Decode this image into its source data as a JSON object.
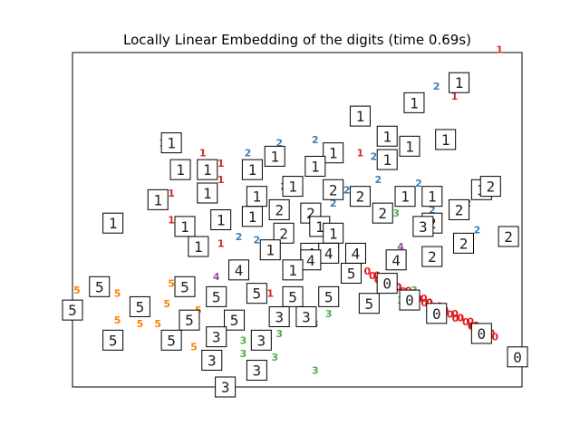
{
  "chart_data": {
    "type": "scatter",
    "title": "Locally Linear Embedding of the digits (time 0.69s)",
    "xlabel": "",
    "ylabel": "",
    "xlim": [
      0,
      1
    ],
    "ylim": [
      0,
      1
    ],
    "axes_ticks": false,
    "grid": false,
    "colors": {
      "0": "#e41a1c",
      "1": "#d62728",
      "2": "#377eb8",
      "3": "#4daf4a",
      "4": "#984ea3",
      "5": "#ff7f00"
    },
    "points": [
      {
        "digit": "1",
        "x": 0.95,
        "y": 1.01
      },
      {
        "digit": "2",
        "x": 0.81,
        "y": 0.9
      },
      {
        "digit": "1",
        "x": 0.85,
        "y": 0.87
      },
      {
        "digit": "2",
        "x": 0.54,
        "y": 0.74
      },
      {
        "digit": "2",
        "x": 0.46,
        "y": 0.73
      },
      {
        "digit": "1",
        "x": 0.2,
        "y": 0.73
      },
      {
        "digit": "1",
        "x": 0.29,
        "y": 0.7
      },
      {
        "digit": "2",
        "x": 0.39,
        "y": 0.7
      },
      {
        "digit": "1",
        "x": 0.64,
        "y": 0.7
      },
      {
        "digit": "2",
        "x": 0.77,
        "y": 0.61
      },
      {
        "digit": "2",
        "x": 0.88,
        "y": 0.55
      },
      {
        "digit": "1",
        "x": 0.33,
        "y": 0.62
      },
      {
        "digit": "1",
        "x": 0.22,
        "y": 0.58
      },
      {
        "digit": "2",
        "x": 0.47,
        "y": 0.6
      },
      {
        "digit": "2",
        "x": 0.58,
        "y": 0.55
      },
      {
        "digit": "2",
        "x": 0.8,
        "y": 0.53
      },
      {
        "digit": "3",
        "x": 0.72,
        "y": 0.52
      },
      {
        "digit": "2",
        "x": 0.9,
        "y": 0.47
      },
      {
        "digit": "2",
        "x": 0.37,
        "y": 0.45
      },
      {
        "digit": "2",
        "x": 0.41,
        "y": 0.44
      },
      {
        "digit": "1",
        "x": 0.33,
        "y": 0.43
      },
      {
        "digit": "1",
        "x": 0.22,
        "y": 0.5
      },
      {
        "digit": "4",
        "x": 0.73,
        "y": 0.42
      },
      {
        "digit": "4",
        "x": 0.32,
        "y": 0.33
      },
      {
        "digit": "4",
        "x": 0.52,
        "y": 0.41
      },
      {
        "digit": "0",
        "x": 0.94,
        "y": 0.15
      },
      {
        "digit": "0",
        "x": 0.89,
        "y": 0.18
      },
      {
        "digit": "5",
        "x": 0.01,
        "y": 0.29
      },
      {
        "digit": "5",
        "x": 0.07,
        "y": 0.28
      },
      {
        "digit": "5",
        "x": 0.1,
        "y": 0.28
      },
      {
        "digit": "5",
        "x": 0.22,
        "y": 0.31
      },
      {
        "digit": "5",
        "x": 0.21,
        "y": 0.25
      },
      {
        "digit": "5",
        "x": 0.15,
        "y": 0.19
      },
      {
        "digit": "5",
        "x": 0.19,
        "y": 0.19
      },
      {
        "digit": "5",
        "x": 0.28,
        "y": 0.23
      },
      {
        "digit": "5",
        "x": 0.27,
        "y": 0.12
      },
      {
        "digit": "5",
        "x": 0.1,
        "y": 0.2
      },
      {
        "digit": "3",
        "x": 0.38,
        "y": 0.14
      },
      {
        "digit": "3",
        "x": 0.46,
        "y": 0.16
      },
      {
        "digit": "3",
        "x": 0.57,
        "y": 0.22
      },
      {
        "digit": "3",
        "x": 0.54,
        "y": 0.19
      },
      {
        "digit": "3",
        "x": 0.45,
        "y": 0.09
      },
      {
        "digit": "3",
        "x": 0.38,
        "y": 0.1
      },
      {
        "digit": "3",
        "x": 0.54,
        "y": 0.05
      },
      {
        "digit": "3",
        "x": 0.73,
        "y": 0.26
      },
      {
        "digit": "3",
        "x": 0.76,
        "y": 0.29
      },
      {
        "digit": "1",
        "x": 0.44,
        "y": 0.28
      },
      {
        "digit": "1",
        "x": 0.33,
        "y": 0.67
      },
      {
        "digit": "2",
        "x": 0.67,
        "y": 0.69
      },
      {
        "digit": "2",
        "x": 0.68,
        "y": 0.62
      },
      {
        "digit": "2",
        "x": 0.61,
        "y": 0.59
      }
    ],
    "thumbnails": [
      {
        "digit": "1",
        "x": 0.86,
        "y": 0.91
      },
      {
        "digit": "1",
        "x": 0.76,
        "y": 0.85
      },
      {
        "digit": "1",
        "x": 0.64,
        "y": 0.81
      },
      {
        "digit": "1",
        "x": 0.7,
        "y": 0.75
      },
      {
        "digit": "1",
        "x": 0.83,
        "y": 0.74
      },
      {
        "digit": "1",
        "x": 0.75,
        "y": 0.72
      },
      {
        "digit": "1",
        "x": 0.58,
        "y": 0.7
      },
      {
        "digit": "1",
        "x": 0.45,
        "y": 0.69
      },
      {
        "digit": "1",
        "x": 0.54,
        "y": 0.66
      },
      {
        "digit": "1",
        "x": 0.7,
        "y": 0.68
      },
      {
        "digit": "1",
        "x": 0.22,
        "y": 0.73
      },
      {
        "digit": "1",
        "x": 0.24,
        "y": 0.65
      },
      {
        "digit": "1",
        "x": 0.3,
        "y": 0.65
      },
      {
        "digit": "1",
        "x": 0.4,
        "y": 0.65
      },
      {
        "digit": "1",
        "x": 0.3,
        "y": 0.58
      },
      {
        "digit": "1",
        "x": 0.19,
        "y": 0.56
      },
      {
        "digit": "1",
        "x": 0.41,
        "y": 0.57
      },
      {
        "digit": "1",
        "x": 0.49,
        "y": 0.6
      },
      {
        "digit": "2",
        "x": 0.58,
        "y": 0.59
      },
      {
        "digit": "2",
        "x": 0.64,
        "y": 0.57
      },
      {
        "digit": "1",
        "x": 0.4,
        "y": 0.51
      },
      {
        "digit": "2",
        "x": 0.46,
        "y": 0.53
      },
      {
        "digit": "2",
        "x": 0.53,
        "y": 0.52
      },
      {
        "digit": "2",
        "x": 0.69,
        "y": 0.52
      },
      {
        "digit": "1",
        "x": 0.74,
        "y": 0.57
      },
      {
        "digit": "1",
        "x": 0.8,
        "y": 0.57
      },
      {
        "digit": "2",
        "x": 0.8,
        "y": 0.49
      },
      {
        "digit": "2",
        "x": 0.86,
        "y": 0.53
      },
      {
        "digit": "3",
        "x": 0.91,
        "y": 0.59
      },
      {
        "digit": "2",
        "x": 0.93,
        "y": 0.6
      },
      {
        "digit": "2",
        "x": 0.97,
        "y": 0.45
      },
      {
        "digit": "3",
        "x": 0.78,
        "y": 0.48
      },
      {
        "digit": "2",
        "x": 0.87,
        "y": 0.43
      },
      {
        "digit": "2",
        "x": 0.8,
        "y": 0.39
      },
      {
        "digit": "1",
        "x": 0.09,
        "y": 0.49
      },
      {
        "digit": "1",
        "x": 0.25,
        "y": 0.48
      },
      {
        "digit": "1",
        "x": 0.33,
        "y": 0.5
      },
      {
        "digit": "1",
        "x": 0.55,
        "y": 0.48
      },
      {
        "digit": "1",
        "x": 0.58,
        "y": 0.46
      },
      {
        "digit": "2",
        "x": 0.47,
        "y": 0.46
      },
      {
        "digit": "1",
        "x": 0.28,
        "y": 0.42
      },
      {
        "digit": "1",
        "x": 0.44,
        "y": 0.41
      },
      {
        "digit": "4",
        "x": 0.53,
        "y": 0.4
      },
      {
        "digit": "4",
        "x": 0.57,
        "y": 0.4
      },
      {
        "digit": "4",
        "x": 0.63,
        "y": 0.4
      },
      {
        "digit": "4",
        "x": 0.72,
        "y": 0.38
      },
      {
        "digit": "4",
        "x": 0.53,
        "y": 0.38
      },
      {
        "digit": "4",
        "x": 0.37,
        "y": 0.35
      },
      {
        "digit": "1",
        "x": 0.49,
        "y": 0.35
      },
      {
        "digit": "5",
        "x": 0.62,
        "y": 0.34
      },
      {
        "digit": "5",
        "x": 0.06,
        "y": 0.3
      },
      {
        "digit": "5",
        "x": 0.25,
        "y": 0.3
      },
      {
        "digit": "5",
        "x": 0.32,
        "y": 0.27
      },
      {
        "digit": "5",
        "x": 0.41,
        "y": 0.28
      },
      {
        "digit": "5",
        "x": 0.49,
        "y": 0.27
      },
      {
        "digit": "5",
        "x": 0.57,
        "y": 0.27
      },
      {
        "digit": "5",
        "x": 0.66,
        "y": 0.25
      },
      {
        "digit": "0",
        "x": 0.7,
        "y": 0.31
      },
      {
        "digit": "0",
        "x": 0.75,
        "y": 0.26
      },
      {
        "digit": "0",
        "x": 0.81,
        "y": 0.22
      },
      {
        "digit": "0",
        "x": 0.91,
        "y": 0.16
      },
      {
        "digit": "0",
        "x": 0.99,
        "y": 0.09
      },
      {
        "digit": "5",
        "x": 0.15,
        "y": 0.24
      },
      {
        "digit": "5",
        "x": 0.26,
        "y": 0.2
      },
      {
        "digit": "5",
        "x": 0.36,
        "y": 0.2
      },
      {
        "digit": "3",
        "x": 0.46,
        "y": 0.21
      },
      {
        "digit": "3",
        "x": 0.52,
        "y": 0.21
      },
      {
        "digit": "5",
        "x": 0.0,
        "y": 0.23
      },
      {
        "digit": "5",
        "x": 0.09,
        "y": 0.14
      },
      {
        "digit": "5",
        "x": 0.22,
        "y": 0.14
      },
      {
        "digit": "3",
        "x": 0.32,
        "y": 0.15
      },
      {
        "digit": "3",
        "x": 0.42,
        "y": 0.14
      },
      {
        "digit": "3",
        "x": 0.31,
        "y": 0.08
      },
      {
        "digit": "3",
        "x": 0.41,
        "y": 0.05
      },
      {
        "digit": "3",
        "x": 0.34,
        "y": 0.0
      }
    ],
    "zero_streak": {
      "digit": "0",
      "x_range": [
        0.66,
        0.93
      ],
      "y_range": [
        0.33,
        0.15
      ]
    }
  }
}
